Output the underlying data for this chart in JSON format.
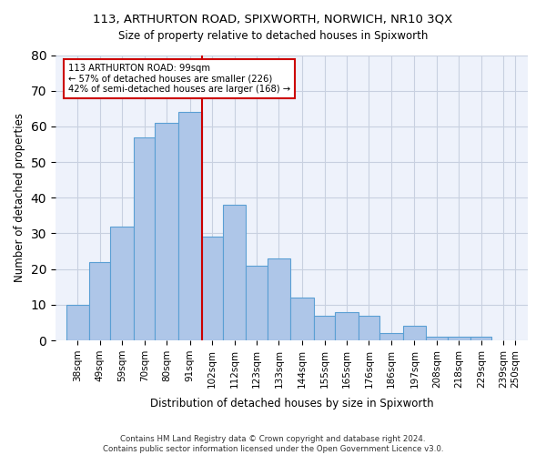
{
  "title1": "113, ARTHURTON ROAD, SPIXWORTH, NORWICH, NR10 3QX",
  "title2": "Size of property relative to detached houses in Spixworth",
  "xlabel": "Distribution of detached houses by size in Spixworth",
  "ylabel": "Number of detached properties",
  "categories": [
    "38sqm",
    "49sqm",
    "59sqm",
    "70sqm",
    "80sqm",
    "91sqm",
    "102sqm",
    "112sqm",
    "123sqm",
    "133sqm",
    "144sqm",
    "155sqm",
    "165sqm",
    "176sqm",
    "186sqm",
    "197sqm",
    "208sqm",
    "218sqm",
    "229sqm",
    "239sqm",
    "250sqm"
  ],
  "bar_heights": [
    10,
    22,
    32,
    57,
    61,
    64,
    29,
    38,
    21,
    23,
    12,
    7,
    8,
    7,
    2,
    4,
    1,
    1,
    1,
    0,
    0
  ],
  "bar_left_edges": [
    38,
    49,
    59,
    70,
    80,
    91,
    102,
    112,
    123,
    133,
    144,
    155,
    165,
    176,
    186,
    197,
    208,
    218,
    229,
    239,
    250
  ],
  "bar_widths": [
    11,
    10,
    11,
    10,
    11,
    11,
    10,
    11,
    10,
    11,
    11,
    10,
    11,
    10,
    11,
    11,
    10,
    11,
    10,
    11,
    0
  ],
  "bar_color": "#aec6e8",
  "bar_edge_color": "#5a9fd4",
  "vline_x": 102,
  "vline_color": "#cc0000",
  "annotation_text": "113 ARTHURTON ROAD: 99sqm\n← 57% of detached houses are smaller (226)\n42% of semi-detached houses are larger (168) →",
  "annotation_box_color": "#ffffff",
  "annotation_box_edge": "#cc0000",
  "ylim": [
    0,
    80
  ],
  "yticks": [
    0,
    10,
    20,
    30,
    40,
    50,
    60,
    70,
    80
  ],
  "grid_color": "#c8d0e0",
  "bg_color": "#eef2fb",
  "footer": "Contains HM Land Registry data © Crown copyright and database right 2024.\nContains public sector information licensed under the Open Government Licence v3.0."
}
